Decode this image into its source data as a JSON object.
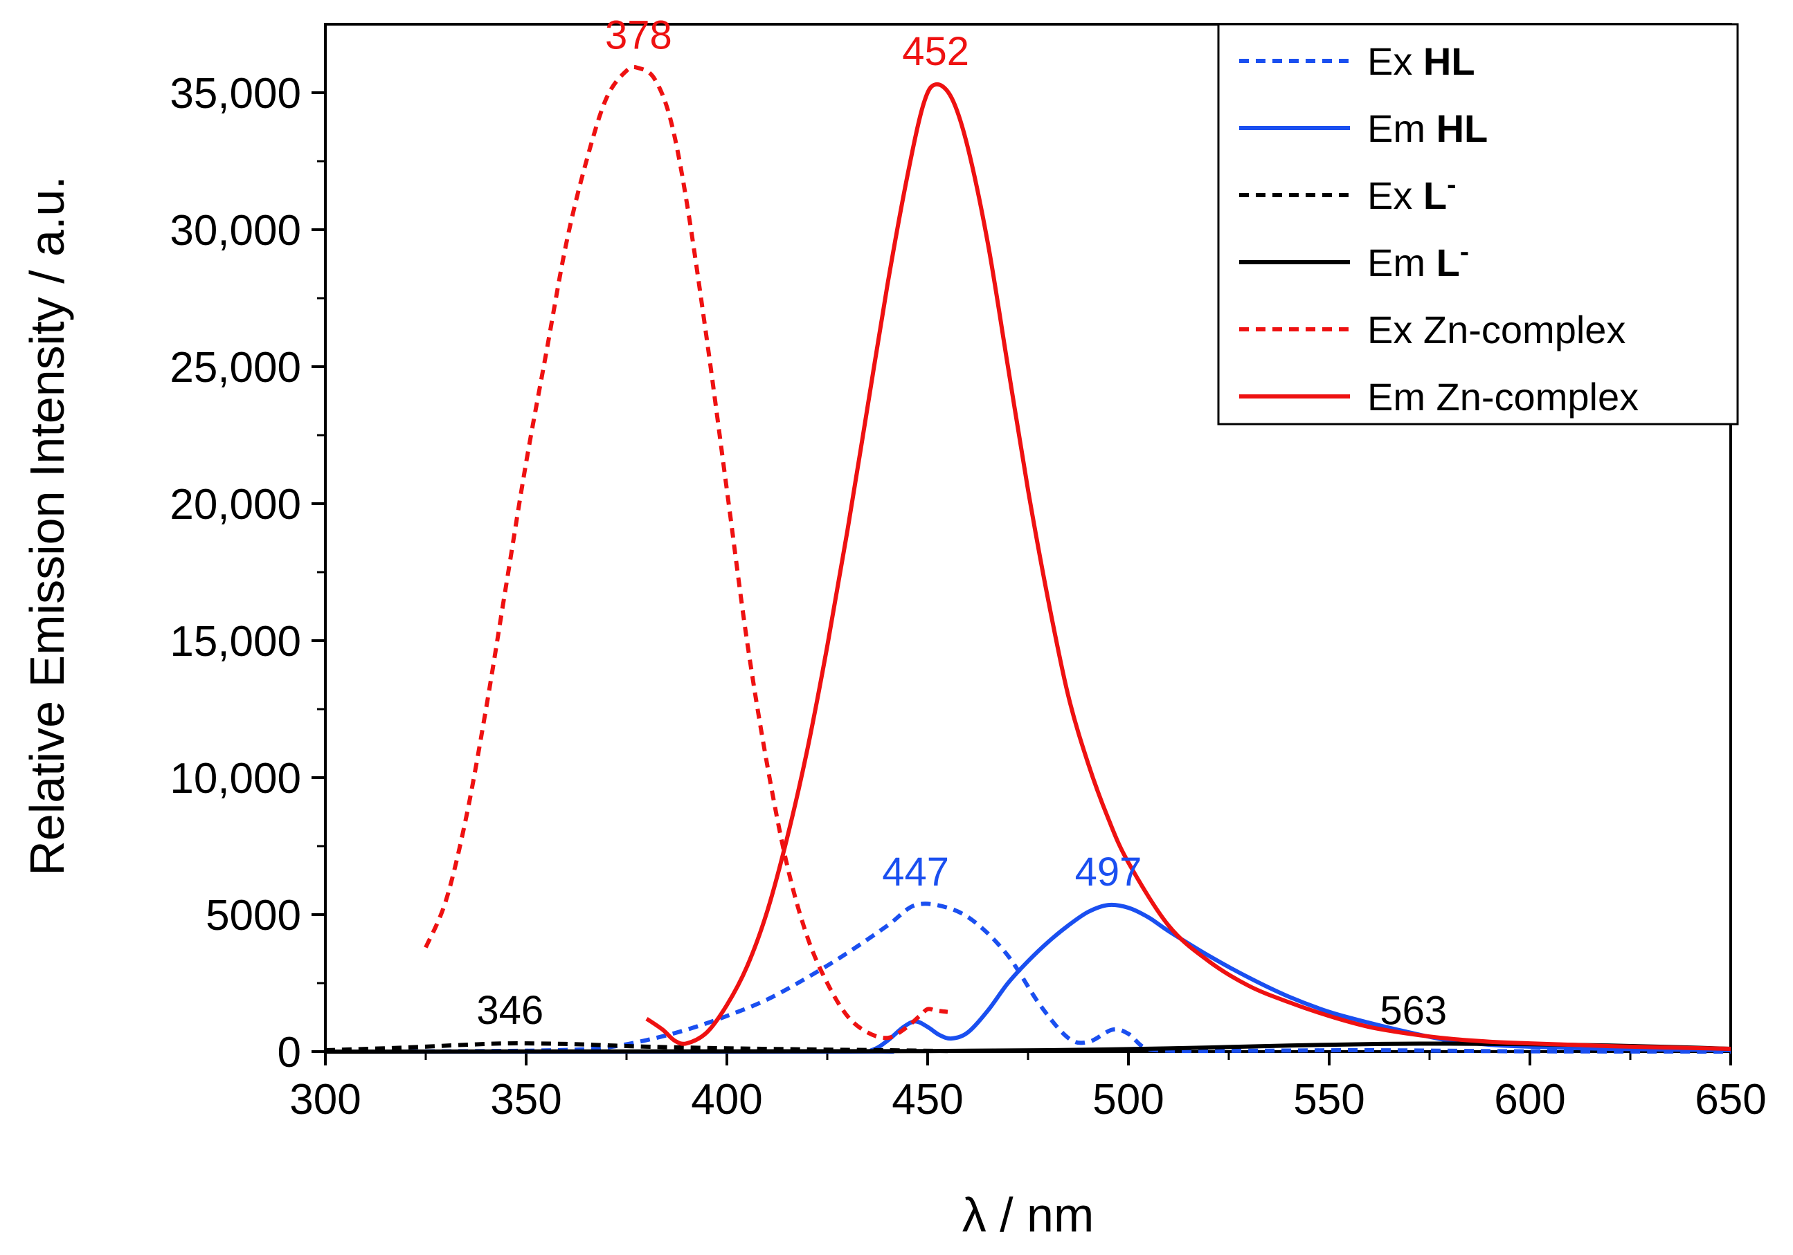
{
  "chart_data": {
    "type": "line",
    "title": "",
    "xlabel": "λ / nm",
    "ylabel": "Relative Emission Intensity / a.u.",
    "xlim": [
      300,
      650
    ],
    "ylim": [
      0,
      37500
    ],
    "x_ticks": [
      300,
      350,
      400,
      450,
      500,
      550,
      600,
      650
    ],
    "x_tick_labels": [
      "300",
      "350",
      "400",
      "450",
      "500",
      "550",
      "600",
      "650"
    ],
    "y_ticks": [
      0,
      5000,
      10000,
      15000,
      20000,
      25000,
      30000,
      35000
    ],
    "y_tick_labels": [
      "0",
      "5000",
      "10,000",
      "15,000",
      "20,000",
      "25,000",
      "30,000",
      "35,000"
    ],
    "grid": false,
    "legend_position": "top-right",
    "series": [
      {
        "id": "ex-hl",
        "name": "Ex HL",
        "legend_prefix": "Ex ",
        "legend_bold": "HL",
        "legend_sup": "",
        "color": "#1a4ff0",
        "dash": true,
        "points": [
          [
            300,
            0
          ],
          [
            340,
            20
          ],
          [
            360,
            60
          ],
          [
            370,
            150
          ],
          [
            380,
            420
          ],
          [
            390,
            800
          ],
          [
            400,
            1300
          ],
          [
            410,
            1900
          ],
          [
            420,
            2700
          ],
          [
            430,
            3600
          ],
          [
            440,
            4600
          ],
          [
            447,
            5350
          ],
          [
            455,
            5250
          ],
          [
            462,
            4700
          ],
          [
            470,
            3500
          ],
          [
            478,
            1700
          ],
          [
            485,
            500
          ],
          [
            490,
            350
          ],
          [
            496,
            800
          ],
          [
            500,
            650
          ],
          [
            504,
            150
          ],
          [
            510,
            30
          ],
          [
            530,
            30
          ],
          [
            560,
            50
          ],
          [
            600,
            10
          ],
          [
            650,
            0
          ]
        ]
      },
      {
        "id": "em-hl",
        "name": "Em HL",
        "legend_prefix": "Em ",
        "legend_bold": "HL",
        "legend_sup": "",
        "color": "#1a4ff0",
        "dash": false,
        "points": [
          [
            300,
            0
          ],
          [
            430,
            0
          ],
          [
            436,
            50
          ],
          [
            440,
            400
          ],
          [
            444,
            900
          ],
          [
            447,
            1100
          ],
          [
            450,
            900
          ],
          [
            453,
            600
          ],
          [
            456,
            480
          ],
          [
            460,
            700
          ],
          [
            465,
            1500
          ],
          [
            470,
            2500
          ],
          [
            475,
            3300
          ],
          [
            480,
            4000
          ],
          [
            485,
            4600
          ],
          [
            490,
            5100
          ],
          [
            495,
            5350
          ],
          [
            500,
            5250
          ],
          [
            505,
            4900
          ],
          [
            510,
            4400
          ],
          [
            520,
            3500
          ],
          [
            530,
            2700
          ],
          [
            540,
            2000
          ],
          [
            550,
            1450
          ],
          [
            560,
            1050
          ],
          [
            570,
            700
          ],
          [
            580,
            400
          ],
          [
            590,
            250
          ],
          [
            600,
            180
          ],
          [
            620,
            100
          ],
          [
            650,
            50
          ]
        ]
      },
      {
        "id": "ex-l",
        "name": "Ex L-",
        "legend_prefix": "Ex ",
        "legend_bold": "L",
        "legend_sup": "-",
        "color": "#000000",
        "dash": true,
        "points": [
          [
            300,
            50
          ],
          [
            320,
            150
          ],
          [
            335,
            250
          ],
          [
            346,
            300
          ],
          [
            360,
            280
          ],
          [
            370,
            230
          ],
          [
            380,
            180
          ],
          [
            400,
            120
          ],
          [
            420,
            80
          ],
          [
            440,
            50
          ],
          [
            455,
            20
          ]
        ]
      },
      {
        "id": "em-l",
        "name": "Em L-",
        "legend_prefix": "Em ",
        "legend_bold": "L",
        "legend_sup": "-",
        "color": "#000000",
        "dash": false,
        "points": [
          [
            300,
            0
          ],
          [
            400,
            10
          ],
          [
            450,
            20
          ],
          [
            480,
            50
          ],
          [
            500,
            90
          ],
          [
            520,
            150
          ],
          [
            540,
            220
          ],
          [
            563,
            280
          ],
          [
            580,
            290
          ],
          [
            600,
            270
          ],
          [
            620,
            220
          ],
          [
            640,
            150
          ],
          [
            650,
            100
          ]
        ]
      },
      {
        "id": "ex-zn",
        "name": "Ex Zn-complex",
        "legend_prefix": "Ex Zn-complex",
        "legend_bold": "",
        "legend_sup": "",
        "color": "#ee1111",
        "dash": true,
        "points": [
          [
            325,
            3800
          ],
          [
            330,
            5500
          ],
          [
            335,
            8500
          ],
          [
            340,
            12500
          ],
          [
            345,
            17000
          ],
          [
            350,
            21500
          ],
          [
            355,
            25500
          ],
          [
            360,
            29500
          ],
          [
            365,
            32500
          ],
          [
            370,
            34800
          ],
          [
            375,
            35800
          ],
          [
            378,
            35900
          ],
          [
            382,
            35500
          ],
          [
            386,
            34000
          ],
          [
            390,
            31000
          ],
          [
            395,
            26000
          ],
          [
            400,
            20500
          ],
          [
            405,
            15000
          ],
          [
            410,
            10500
          ],
          [
            415,
            6800
          ],
          [
            420,
            4200
          ],
          [
            425,
            2500
          ],
          [
            430,
            1300
          ],
          [
            435,
            700
          ],
          [
            440,
            500
          ],
          [
            444,
            800
          ],
          [
            448,
            1300
          ],
          [
            450,
            1550
          ],
          [
            452,
            1500
          ],
          [
            455,
            1450
          ]
        ]
      },
      {
        "id": "em-zn",
        "name": "Em Zn-complex",
        "legend_prefix": "Em Zn-complex",
        "legend_bold": "",
        "legend_sup": "",
        "color": "#ee1111",
        "dash": false,
        "points": [
          [
            380,
            1200
          ],
          [
            384,
            800
          ],
          [
            387,
            400
          ],
          [
            390,
            300
          ],
          [
            395,
            700
          ],
          [
            400,
            1700
          ],
          [
            405,
            3100
          ],
          [
            410,
            5100
          ],
          [
            415,
            7800
          ],
          [
            420,
            11000
          ],
          [
            425,
            14800
          ],
          [
            430,
            19000
          ],
          [
            435,
            23500
          ],
          [
            440,
            28000
          ],
          [
            445,
            32000
          ],
          [
            449,
            34600
          ],
          [
            452,
            35300
          ],
          [
            456,
            34800
          ],
          [
            460,
            33000
          ],
          [
            465,
            29500
          ],
          [
            470,
            25000
          ],
          [
            475,
            20500
          ],
          [
            480,
            16500
          ],
          [
            485,
            13000
          ],
          [
            490,
            10500
          ],
          [
            495,
            8500
          ],
          [
            500,
            6900
          ],
          [
            510,
            4600
          ],
          [
            520,
            3300
          ],
          [
            530,
            2400
          ],
          [
            540,
            1800
          ],
          [
            550,
            1300
          ],
          [
            560,
            900
          ],
          [
            570,
            650
          ],
          [
            580,
            470
          ],
          [
            590,
            360
          ],
          [
            600,
            300
          ],
          [
            620,
            200
          ],
          [
            650,
            100
          ]
        ]
      }
    ],
    "annotations": [
      {
        "text": "378",
        "x": 378,
        "y": 35900,
        "color": "#ee1111"
      },
      {
        "text": "452",
        "x": 452,
        "y": 35300,
        "color": "#ee1111"
      },
      {
        "text": "447",
        "x": 447,
        "y": 5350,
        "color": "#1a4ff0"
      },
      {
        "text": "497",
        "x": 495,
        "y": 5350,
        "color": "#1a4ff0"
      },
      {
        "text": "346",
        "x": 346,
        "y": 300,
        "color": "#000000"
      },
      {
        "text": "563",
        "x": 571,
        "y": 290,
        "color": "#000000"
      }
    ]
  }
}
